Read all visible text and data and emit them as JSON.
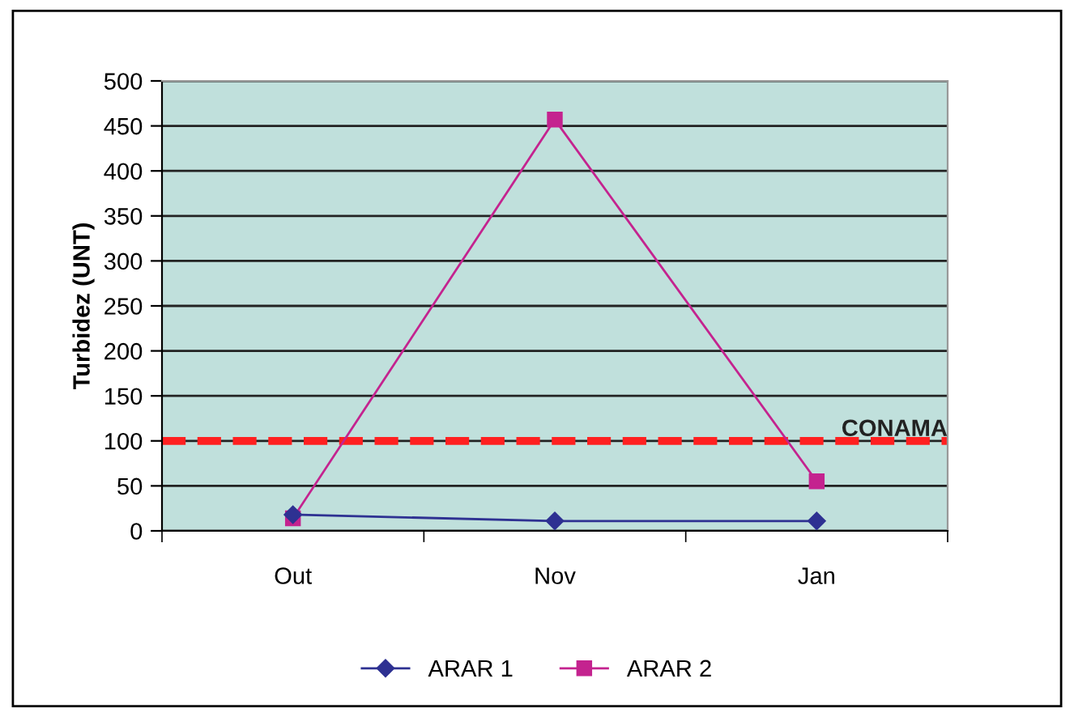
{
  "chart_data": {
    "type": "line",
    "ylabel": "Turbidez (UNT)",
    "categories": [
      "Out",
      "Nov",
      "Jan"
    ],
    "series": [
      {
        "name": "ARAR 1",
        "color": "#2e3192",
        "marker": "diamond",
        "values": [
          18,
          11,
          11
        ]
      },
      {
        "name": "ARAR 2",
        "color": "#c4238f",
        "marker": "square",
        "values": [
          14,
          457,
          55
        ]
      }
    ],
    "ylim": [
      0,
      500
    ],
    "yticks": [
      0,
      50,
      100,
      150,
      200,
      250,
      300,
      350,
      400,
      450,
      500
    ],
    "grid": "y",
    "legend": "bottom",
    "ref_lines": [
      {
        "axis": "y",
        "value": 100,
        "label": "CONAMA",
        "color": "#ff2020",
        "line_style": "dashed"
      }
    ]
  }
}
